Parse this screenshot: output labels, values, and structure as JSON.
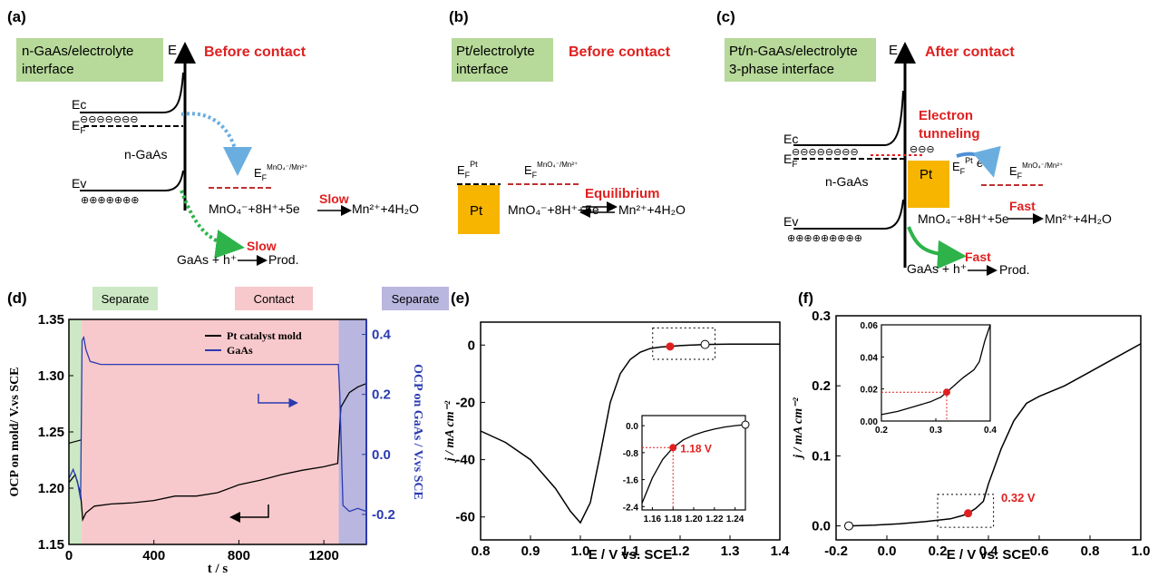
{
  "colors": {
    "green_box": "#b7d99a",
    "red_text": "#e02020",
    "blue_axis": "#2a3bb0",
    "pt_box": "#f7b500",
    "band_green": "#cde8c4",
    "band_red": "#f8c9cc",
    "band_blue": "#b9b6e0",
    "blue_arrow": "#6aaee0",
    "green_arrow": "#2db34a"
  },
  "panel_a": {
    "label": "(a)",
    "box_text": [
      "n-GaAs/electrolyte",
      "interface"
    ],
    "axis": "E",
    "title": "Before contact",
    "ec": "Ec",
    "ef": "E",
    "ef_sub": "F",
    "ev": "Ev",
    "material": "n-GaAs",
    "redox_e": "E",
    "redox_sub": "F",
    "redox_sup": "MnO₄⁻/Mn²⁺",
    "reaction_left": "MnO₄⁻+8H⁺+5e",
    "reaction_right": "Mn²⁺+4H₂O",
    "rate1": "Slow",
    "gaas_reaction": "GaAs + h⁺",
    "prod": "Prod.",
    "rate2": "Slow"
  },
  "panel_b": {
    "label": "(b)",
    "box_text": [
      "Pt/electrolyte",
      "interface"
    ],
    "title": "Before contact",
    "ef": "E",
    "ef_sub": "F",
    "ef_sup": "Pt",
    "redox_e": "E",
    "redox_sub": "F",
    "redox_sup": "MnO₄⁻/Mn²⁺",
    "pt": "Pt",
    "state": "Equilibrium",
    "reaction_left": "MnO₄⁻+8H⁺+5e",
    "reaction_right": "Mn²⁺+4H₂O"
  },
  "panel_c": {
    "label": "(c)",
    "box_text": [
      "Pt/n-GaAs/electrolyte",
      "3-phase interface"
    ],
    "axis": "E",
    "title": "After contact",
    "tunneling": [
      "Electron",
      "tunneling"
    ],
    "ec": "Ec",
    "ef": "E",
    "ef_sub": "F",
    "ev": "Ev",
    "material": "n-GaAs",
    "pt": "Pt",
    "ef_pt": "E",
    "ef_pt_sub": "F",
    "ef_pt_sup": "Pt",
    "e_label": "e",
    "redox_e": "E",
    "redox_sub": "F",
    "redox_sup": "MnO₄⁻/Mn²⁺",
    "rate1": "Fast",
    "reaction_left": "MnO₄⁻+8H⁺+5e",
    "reaction_right": "Mn²⁺+4H₂O",
    "rate2": "Fast",
    "gaas_reaction": "GaAs + h⁺",
    "prod": "Prod."
  },
  "chart_data": [
    {
      "panel": "(d)",
      "type": "line",
      "bands": [
        {
          "label": "Separate",
          "x": [
            0,
            60
          ]
        },
        {
          "label": "Contact",
          "x": [
            60,
            1270
          ]
        },
        {
          "label": "Separate",
          "x": [
            1270,
            1400
          ]
        }
      ],
      "xlabel": "t / s",
      "ylabel_left": "OCP on mold/ V.vs SCE",
      "ylabel_right": "OCP on GaAs / V.vs SCE",
      "xlim": [
        0,
        1400
      ],
      "ylim_left": [
        1.15,
        1.35
      ],
      "ylim_right": [
        -0.3,
        0.45
      ],
      "xticks": [
        "0",
        "400",
        "800",
        "1200"
      ],
      "yticks_left": [
        "1.15",
        "1.20",
        "1.25",
        "1.30",
        "1.35"
      ],
      "yticks_right": [
        "-0.2",
        "0.0",
        "0.2",
        "0.4"
      ],
      "series": [
        {
          "name": "Pt catalyst mold",
          "axis": "left",
          "x": [
            0,
            30,
            55,
            65,
            80,
            120,
            200,
            300,
            400,
            500,
            600,
            700,
            800,
            900,
            1000,
            1100,
            1200,
            1265,
            1280,
            1320,
            1360,
            1400
          ],
          "y": [
            1.205,
            1.212,
            1.195,
            1.172,
            1.178,
            1.184,
            1.186,
            1.187,
            1.189,
            1.193,
            1.193,
            1.196,
            1.203,
            1.207,
            1.212,
            1.216,
            1.219,
            1.222,
            1.272,
            1.285,
            1.29,
            1.293
          ]
        },
        {
          "name": "GaAs",
          "axis": "right",
          "x": [
            0,
            20,
            40,
            55,
            62,
            70,
            80,
            100,
            150,
            300,
            600,
            900,
            1200,
            1268,
            1275,
            1290,
            1320,
            1360,
            1400
          ],
          "y": [
            -0.08,
            -0.05,
            -0.09,
            -0.15,
            0.38,
            0.39,
            0.35,
            0.31,
            0.3,
            0.3,
            0.3,
            0.3,
            0.3,
            0.3,
            0.2,
            -0.17,
            -0.19,
            -0.18,
            -0.19
          ]
        }
      ],
      "left_series_early": {
        "x": [
          0,
          60
        ],
        "y": [
          1.24,
          1.243
        ]
      }
    },
    {
      "panel": "(e)",
      "type": "line",
      "xlabel": "E / V vs. SCE",
      "ylabel": "j / mA cm⁻²",
      "xlim": [
        0.8,
        1.4
      ],
      "ylim": [
        -68,
        8
      ],
      "xticks": [
        "0.8",
        "0.9",
        "1.0",
        "1.1",
        "1.2",
        "1.3",
        "1.4"
      ],
      "yticks": [
        "0",
        "-20",
        "-40",
        "-60"
      ],
      "x": [
        0.8,
        0.85,
        0.9,
        0.95,
        0.98,
        1.0,
        1.02,
        1.04,
        1.06,
        1.08,
        1.1,
        1.12,
        1.14,
        1.16,
        1.18,
        1.2,
        1.25,
        1.3,
        1.4
      ],
      "y": [
        -30,
        -34,
        -40,
        -50,
        -58,
        -62,
        -55,
        -38,
        -20,
        -10,
        -5,
        -2.5,
        -1.2,
        -0.7,
        -0.5,
        -0.2,
        0.2,
        0.3,
        0.35
      ],
      "marker_red": {
        "x": 1.18,
        "y": -0.5
      },
      "marker_open": {
        "x": 1.25,
        "y": 0.2
      },
      "inset": {
        "xlim": [
          1.15,
          1.25
        ],
        "ylim": [
          -2.5,
          0.3
        ],
        "xticks": [
          "1.16",
          "1.18",
          "1.20",
          "1.22",
          "1.24"
        ],
        "yticks": [
          "0.0",
          "-0.8",
          "-1.6",
          "-2.4"
        ],
        "x": [
          1.15,
          1.16,
          1.17,
          1.18,
          1.19,
          1.2,
          1.21,
          1.22,
          1.23,
          1.24,
          1.25
        ],
        "y": [
          -2.3,
          -1.55,
          -1.0,
          -0.65,
          -0.42,
          -0.28,
          -0.18,
          -0.1,
          -0.04,
          0.0,
          0.03
        ],
        "marker_red": {
          "x": 1.18,
          "y": -0.65
        },
        "marker_open": {
          "x": 1.25,
          "y": 0.03
        },
        "annotation": "1.18 V"
      }
    },
    {
      "panel": "(f)",
      "type": "line",
      "xlabel": "E / V vs. SCE",
      "ylabel": "j / mA cm⁻²",
      "xlim": [
        -0.2,
        1.0
      ],
      "ylim": [
        -0.02,
        0.3
      ],
      "xticks": [
        "-0.2",
        "0.0",
        "0.2",
        "0.4",
        "0.6",
        "0.8",
        "1.0"
      ],
      "yticks": [
        "0.0",
        "0.1",
        "0.2",
        "0.3"
      ],
      "x": [
        -0.15,
        -0.05,
        0.05,
        0.15,
        0.25,
        0.3,
        0.32,
        0.35,
        0.38,
        0.4,
        0.45,
        0.5,
        0.55,
        0.6,
        0.7,
        0.8,
        0.9,
        1.0
      ],
      "y": [
        0.0,
        0.001,
        0.003,
        0.006,
        0.01,
        0.015,
        0.018,
        0.025,
        0.035,
        0.06,
        0.11,
        0.15,
        0.175,
        0.185,
        0.2,
        0.22,
        0.24,
        0.26
      ],
      "marker_red": {
        "x": 0.32,
        "y": 0.018
      },
      "marker_open": {
        "x": -0.15,
        "y": 0.0
      },
      "annotation": "0.32 V",
      "inset": {
        "xlim": [
          0.2,
          0.4
        ],
        "ylim": [
          0.0,
          0.06
        ],
        "xticks": [
          "0.2",
          "0.3",
          "0.4"
        ],
        "yticks": [
          "0.00",
          "0.02",
          "0.04",
          "0.06"
        ],
        "x": [
          0.2,
          0.23,
          0.26,
          0.29,
          0.31,
          0.32,
          0.33,
          0.35,
          0.37,
          0.38,
          0.39,
          0.4
        ],
        "y": [
          0.004,
          0.006,
          0.009,
          0.012,
          0.015,
          0.018,
          0.021,
          0.027,
          0.032,
          0.037,
          0.05,
          0.06
        ],
        "marker_red": {
          "x": 0.32,
          "y": 0.018
        }
      }
    }
  ]
}
